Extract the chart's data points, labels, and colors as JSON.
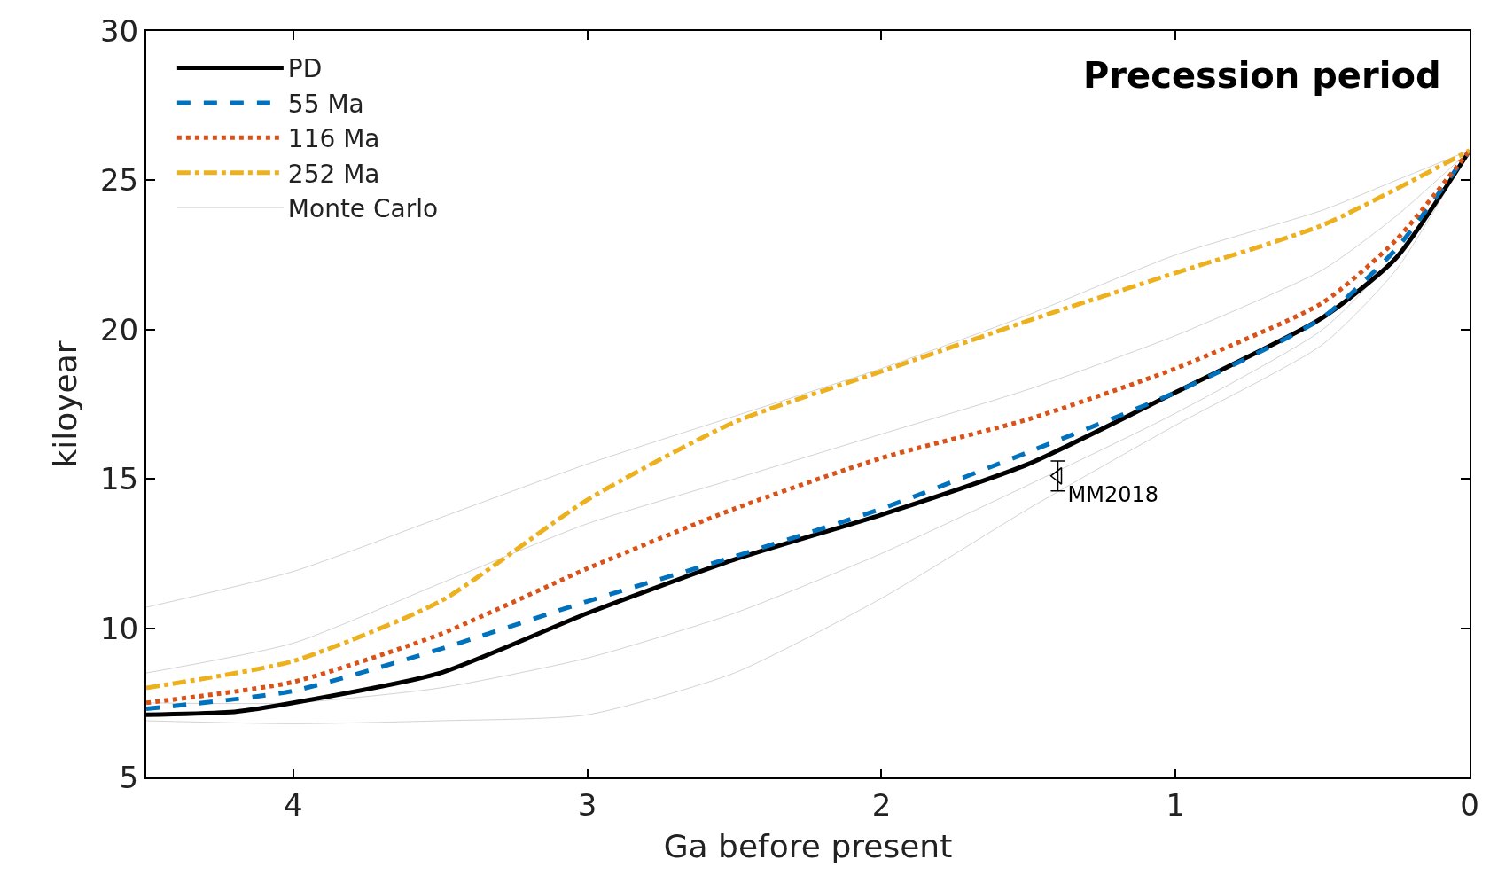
{
  "chart_data": {
    "type": "line",
    "xlabel": "Ga before present",
    "ylabel": "kiloyear",
    "xlim": [
      4.5,
      0
    ],
    "xticks": [
      4,
      3,
      2,
      1,
      0
    ],
    "ylim": [
      5,
      30
    ],
    "yticks": [
      5,
      10,
      15,
      20,
      25,
      30
    ],
    "legend": "top left",
    "marker": "none",
    "annotations": [
      "Precession period"
    ],
    "series": [
      {
        "name": "Monte Carlo",
        "color": "#d3d3d3",
        "line_style": "solid",
        "x": [
          4.5,
          4,
          3.5,
          3,
          2.5,
          2,
          1.5,
          1,
          0.5,
          0.25,
          0
        ],
        "values": [
          10.7,
          11.9,
          13.7,
          15.5,
          17.1,
          18.7,
          20.5,
          22.5,
          24.0,
          25.0,
          26.0
        ]
      },
      {
        "color": "#d3d3d3",
        "line_style": "solid",
        "x": [
          4.5,
          4,
          3.5,
          3,
          2.5,
          2,
          1.5,
          1,
          0.5,
          0.25,
          0
        ],
        "values": [
          6.9,
          6.8,
          6.9,
          7.1,
          8.5,
          11.0,
          14.0,
          16.8,
          19.5,
          22.0,
          26.0
        ]
      },
      {
        "color": "#d3d3d3",
        "line_style": "solid",
        "x": [
          4.5,
          4,
          3.5,
          3,
          2.5,
          2,
          1.5,
          1,
          0.5,
          0.25,
          0
        ],
        "values": [
          8.5,
          9.5,
          11.5,
          13.5,
          15.0,
          16.5,
          18.0,
          19.8,
          22.0,
          23.8,
          26.0
        ]
      },
      {
        "color": "#d3d3d3",
        "line_style": "solid",
        "x": [
          4.5,
          4,
          3.5,
          3,
          2.5,
          2,
          1.5,
          1,
          0.5,
          0.25,
          0
        ],
        "values": [
          7.5,
          7.5,
          8.0,
          9.0,
          10.5,
          12.5,
          14.8,
          17.2,
          20.0,
          22.5,
          26.0
        ]
      },
      {
        "name": "PD",
        "color": "#000000",
        "line_style": "solid",
        "x": [
          4.5,
          4.2,
          4,
          3.5,
          3,
          2.5,
          2,
          1.5,
          1,
          0.5,
          0.25,
          0
        ],
        "values": [
          7.1,
          7.2,
          7.5,
          8.5,
          10.5,
          12.3,
          13.8,
          15.5,
          17.9,
          20.4,
          22.4,
          26.0
        ]
      },
      {
        "name": "55 Ma",
        "color": "#0072bd",
        "line_style": "dashed",
        "x": [
          4.5,
          4,
          3.5,
          3,
          2.5,
          2,
          1.5,
          1,
          0.5,
          0.25,
          0
        ],
        "values": [
          7.3,
          7.9,
          9.3,
          10.9,
          12.4,
          14.0,
          15.9,
          17.9,
          20.4,
          22.7,
          26.0
        ]
      },
      {
        "name": "116 Ma",
        "color": "#d95319",
        "line_style": "dotted",
        "x": [
          4.5,
          4,
          3.5,
          3,
          2.5,
          2,
          1.5,
          1,
          0.5,
          0.25,
          0
        ],
        "values": [
          7.5,
          8.2,
          9.8,
          12.0,
          14.0,
          15.7,
          17.0,
          18.7,
          20.9,
          23.0,
          26.0
        ]
      },
      {
        "name": "252 Ma",
        "color": "#edb120",
        "line_style": "dashdot",
        "x": [
          4.5,
          4,
          3.5,
          3,
          2.5,
          2,
          1.5,
          1,
          0.5,
          0
        ],
        "values": [
          8.0,
          8.9,
          10.9,
          14.3,
          16.9,
          18.6,
          20.3,
          21.9,
          23.5,
          26.0
        ]
      },
      {
        "name": "MM2018",
        "type": "scatter",
        "color": "#000000",
        "marker": "triangle",
        "x": [
          1.4
        ],
        "values": [
          15.1
        ],
        "errors": [
          [
            14.6,
            15.6
          ]
        ]
      }
    ]
  }
}
